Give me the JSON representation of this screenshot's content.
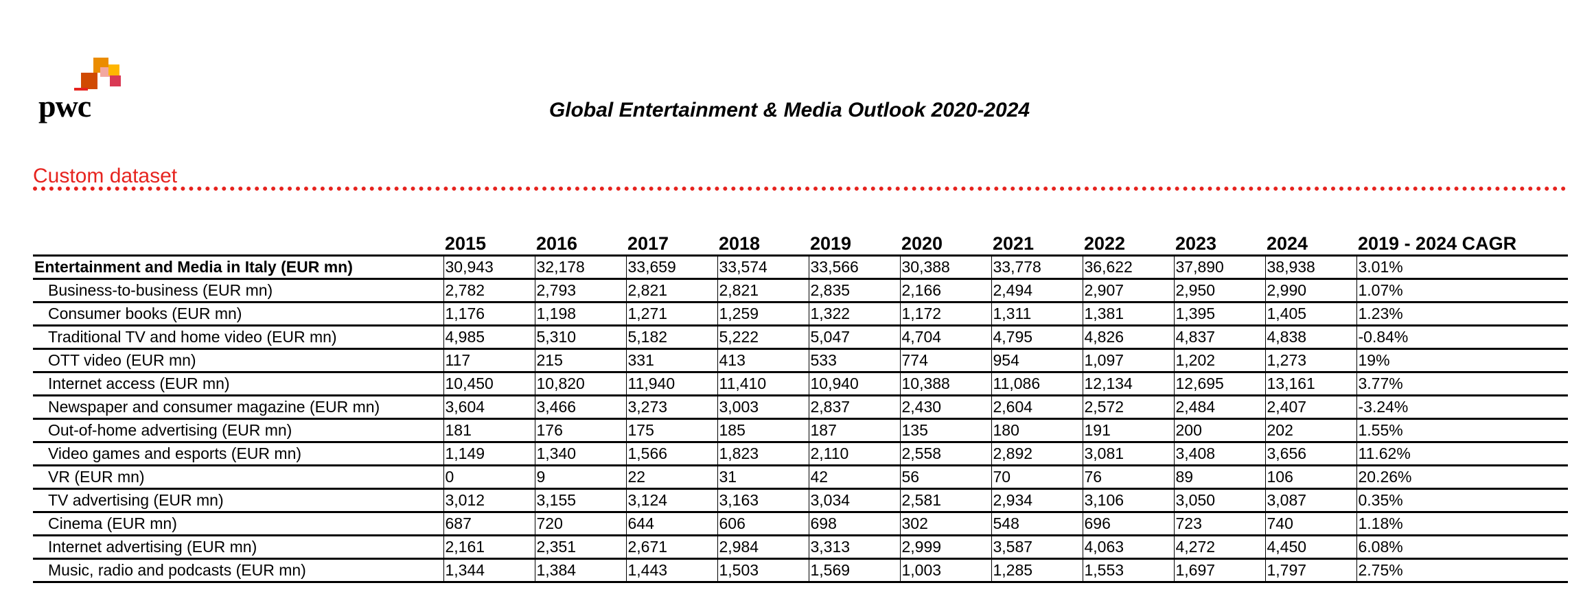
{
  "logo": {
    "text": "pwc",
    "colors": [
      "#e6231e",
      "#eb8c00",
      "#ffb600",
      "#d93954",
      "#f2a7a0"
    ]
  },
  "header": {
    "report_title": "Global Entertainment & Media Outlook 2020-2024",
    "dataset_title": "Custom dataset",
    "accent_color": "#e6231e"
  },
  "chart_data": {
    "type": "table",
    "columns": [
      "2015",
      "2016",
      "2017",
      "2018",
      "2019",
      "2020",
      "2021",
      "2022",
      "2023",
      "2024",
      "2019 - 2024 CAGR"
    ],
    "rows": [
      {
        "label": "Entertainment and Media in Italy (EUR mn)",
        "total": true,
        "values": [
          "30,943",
          "32,178",
          "33,659",
          "33,574",
          "33,566",
          "30,388",
          "33,778",
          "36,622",
          "37,890",
          "38,938",
          "3.01%"
        ]
      },
      {
        "label": "Business-to-business (EUR mn)",
        "values": [
          "2,782",
          "2,793",
          "2,821",
          "2,821",
          "2,835",
          "2,166",
          "2,494",
          "2,907",
          "2,950",
          "2,990",
          "1.07%"
        ]
      },
      {
        "label": "Consumer books (EUR mn)",
        "values": [
          "1,176",
          "1,198",
          "1,271",
          "1,259",
          "1,322",
          "1,172",
          "1,311",
          "1,381",
          "1,395",
          "1,405",
          "1.23%"
        ]
      },
      {
        "label": "Traditional TV and home video (EUR mn)",
        "values": [
          "4,985",
          "5,310",
          "5,182",
          "5,222",
          "5,047",
          "4,704",
          "4,795",
          "4,826",
          "4,837",
          "4,838",
          "-0.84%"
        ]
      },
      {
        "label": "OTT video (EUR mn)",
        "values": [
          "117",
          "215",
          "331",
          "413",
          "533",
          "774",
          "954",
          "1,097",
          "1,202",
          "1,273",
          "19%"
        ]
      },
      {
        "label": "Internet access (EUR mn)",
        "values": [
          "10,450",
          "10,820",
          "11,940",
          "11,410",
          "10,940",
          "10,388",
          "11,086",
          "12,134",
          "12,695",
          "13,161",
          "3.77%"
        ]
      },
      {
        "label": "Newspaper and consumer magazine (EUR mn)",
        "values": [
          "3,604",
          "3,466",
          "3,273",
          "3,003",
          "2,837",
          "2,430",
          "2,604",
          "2,572",
          "2,484",
          "2,407",
          "-3.24%"
        ]
      },
      {
        "label": "Out-of-home advertising (EUR mn)",
        "values": [
          "181",
          "176",
          "175",
          "185",
          "187",
          "135",
          "180",
          "191",
          "200",
          "202",
          "1.55%"
        ]
      },
      {
        "label": "Video games and esports (EUR mn)",
        "values": [
          "1,149",
          "1,340",
          "1,566",
          "1,823",
          "2,110",
          "2,558",
          "2,892",
          "3,081",
          "3,408",
          "3,656",
          "11.62%"
        ]
      },
      {
        "label": "VR (EUR mn)",
        "values": [
          "0",
          "9",
          "22",
          "31",
          "42",
          "56",
          "70",
          "76",
          "89",
          "106",
          "20.26%"
        ]
      },
      {
        "label": "TV advertising (EUR mn)",
        "values": [
          "3,012",
          "3,155",
          "3,124",
          "3,163",
          "3,034",
          "2,581",
          "2,934",
          "3,106",
          "3,050",
          "3,087",
          "0.35%"
        ]
      },
      {
        "label": "Cinema (EUR mn)",
        "values": [
          "687",
          "720",
          "644",
          "606",
          "698",
          "302",
          "548",
          "696",
          "723",
          "740",
          "1.18%"
        ]
      },
      {
        "label": "Internet advertising (EUR mn)",
        "values": [
          "2,161",
          "2,351",
          "2,671",
          "2,984",
          "3,313",
          "2,999",
          "3,587",
          "4,063",
          "4,272",
          "4,450",
          "6.08%"
        ]
      },
      {
        "label": "Music, radio and podcasts (EUR mn)",
        "values": [
          "1,344",
          "1,384",
          "1,443",
          "1,503",
          "1,569",
          "1,003",
          "1,285",
          "1,553",
          "1,697",
          "1,797",
          "2.75%"
        ]
      }
    ]
  }
}
